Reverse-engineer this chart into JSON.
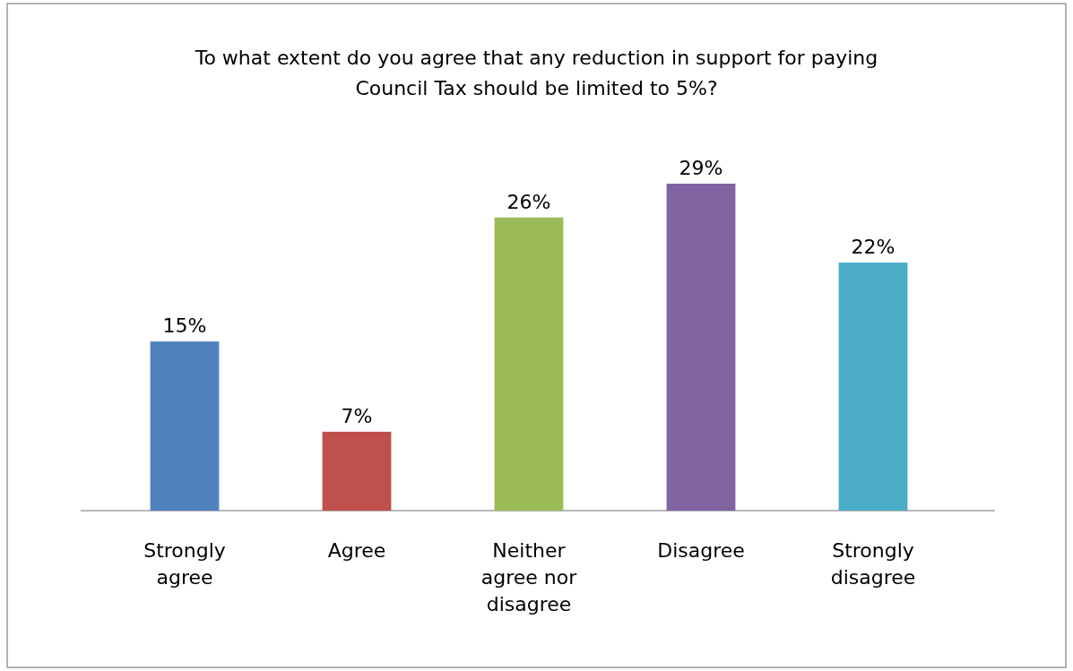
{
  "chart_data": {
    "type": "bar",
    "title": "To what extent do you agree that any reduction in support for paying Council Tax should be limited to 5%?",
    "categories": [
      "Strongly agree",
      "Agree",
      "Neither agree nor disagree",
      "Disagree",
      "Strongly disagree"
    ],
    "values": [
      15,
      7,
      26,
      29,
      22
    ],
    "colors": [
      "#4f81bd",
      "#c0504d",
      "#9bbb59",
      "#8064a2",
      "#4bacc6"
    ],
    "value_labels": [
      "15%",
      "7%",
      "26%",
      "29%",
      "22%"
    ]
  }
}
